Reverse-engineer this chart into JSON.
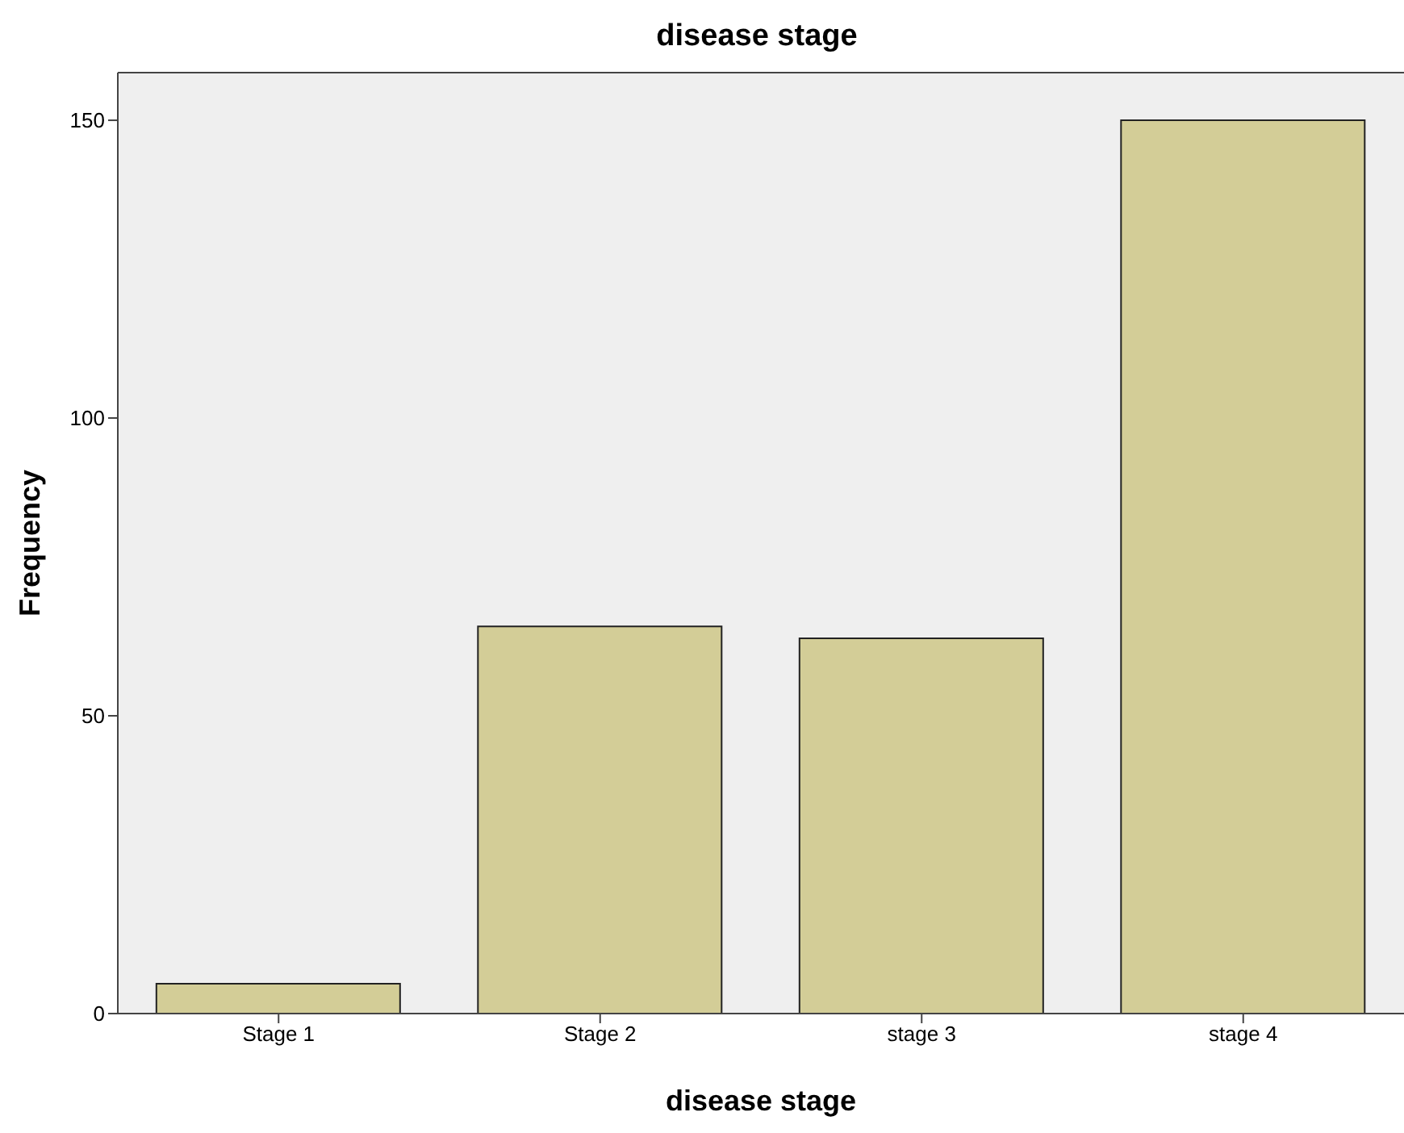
{
  "chart_data": {
    "type": "bar",
    "title": "disease stage",
    "xlabel": "disease stage",
    "ylabel": "Frequency",
    "categories": [
      "Stage 1",
      "Stage 2",
      "stage 3",
      "stage 4"
    ],
    "values": [
      5,
      65,
      63,
      150
    ],
    "color": "#d3cd97",
    "ylim": [
      0,
      158
    ],
    "yticks": [
      0,
      50,
      100,
      150
    ],
    "grid": false
  }
}
